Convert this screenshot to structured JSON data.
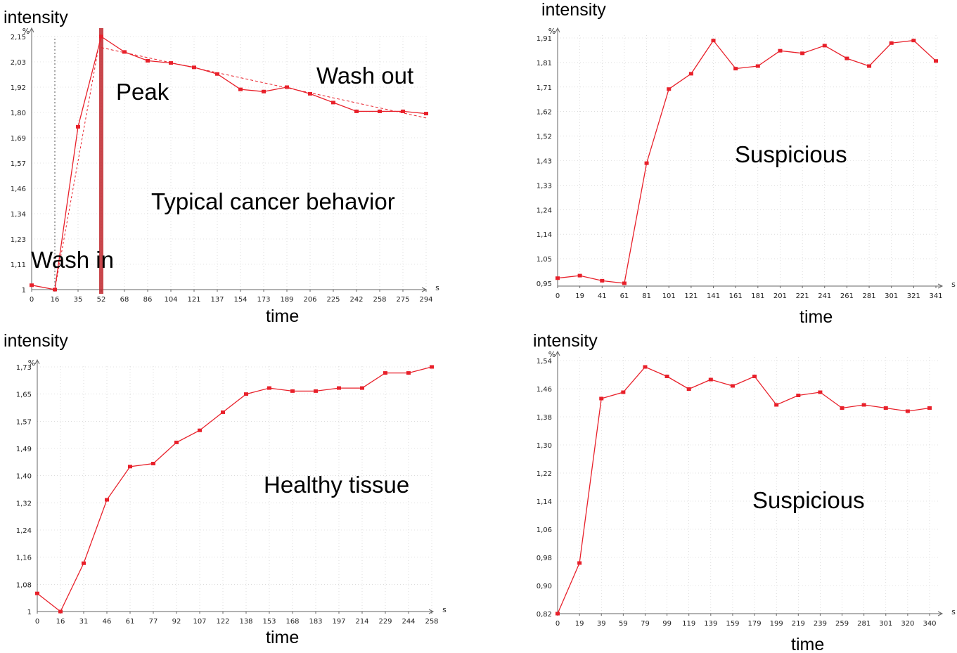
{
  "chart_data": [
    {
      "type": "line",
      "ylabel": "intensity",
      "xlabel": "time",
      "y_unit": "%",
      "x_unit": "s",
      "annotations": [
        "Wash out",
        "Peak",
        "Typical cancer behavior",
        "Wash in"
      ],
      "x_ticks": [
        "0",
        "16",
        "35",
        "52",
        "68",
        "86",
        "104",
        "121",
        "137",
        "154",
        "173",
        "189",
        "206",
        "225",
        "242",
        "258",
        "275",
        "294"
      ],
      "y_ticks": [
        "1",
        "1,11",
        "1,23",
        "1,34",
        "1,46",
        "1,57",
        "1,69",
        "1,80",
        "1,92",
        "2,03",
        "2,15"
      ],
      "ylim": [
        1,
        2.15
      ],
      "peak_time": 52,
      "series": [
        {
          "color": "#e8202a",
          "x": [
            0,
            16,
            35,
            52,
            68,
            86,
            104,
            121,
            137,
            154,
            173,
            189,
            206,
            225,
            242,
            258,
            275,
            294
          ],
          "values": [
            1.02,
            1.0,
            1.74,
            2.15,
            2.08,
            2.04,
            2.03,
            2.01,
            1.98,
            1.91,
            1.9,
            1.92,
            1.89,
            1.85,
            1.81,
            1.81,
            1.81,
            1.8
          ]
        }
      ]
    },
    {
      "type": "line",
      "ylabel": "intensity",
      "xlabel": "time",
      "y_unit": "%",
      "x_unit": "s",
      "annotations": [
        "Suspicious"
      ],
      "x_ticks": [
        "0",
        "19",
        "41",
        "61",
        "81",
        "101",
        "121",
        "141",
        "161",
        "181",
        "201",
        "221",
        "241",
        "261",
        "281",
        "301",
        "321",
        "341"
      ],
      "y_ticks": [
        "0,95",
        "1,05",
        "1,14",
        "1,24",
        "1,33",
        "1,43",
        "1,52",
        "1,62",
        "1,71",
        "1,81",
        "1,91"
      ],
      "ylim": [
        0.95,
        1.91
      ],
      "series": [
        {
          "color": "#e8202a",
          "x": [
            0,
            19,
            41,
            61,
            81,
            101,
            121,
            141,
            161,
            181,
            201,
            221,
            241,
            261,
            281,
            301,
            321,
            341
          ],
          "values": [
            0.97,
            0.98,
            0.96,
            0.95,
            1.42,
            1.71,
            1.77,
            1.9,
            1.79,
            1.8,
            1.86,
            1.85,
            1.88,
            1.83,
            1.8,
            1.89,
            1.9,
            1.82
          ]
        }
      ]
    },
    {
      "type": "line",
      "ylabel": "intensity",
      "xlabel": "time",
      "y_unit": "%",
      "x_unit": "s",
      "annotations": [
        "Healthy tissue"
      ],
      "x_ticks": [
        "0",
        "16",
        "31",
        "46",
        "61",
        "77",
        "92",
        "107",
        "122",
        "138",
        "153",
        "168",
        "183",
        "197",
        "214",
        "229",
        "244",
        "258"
      ],
      "y_ticks": [
        "1",
        "1,08",
        "1,16",
        "1,24",
        "1,32",
        "1,40",
        "1,49",
        "1,57",
        "1,65",
        "1,73"
      ],
      "ylim": [
        1,
        1.81
      ],
      "series": [
        {
          "color": "#e8202a",
          "x": [
            0,
            16,
            31,
            46,
            61,
            77,
            92,
            107,
            122,
            138,
            153,
            168,
            183,
            197,
            214,
            229,
            244,
            258
          ],
          "values": [
            1.06,
            1.0,
            1.16,
            1.37,
            1.48,
            1.49,
            1.56,
            1.6,
            1.66,
            1.72,
            1.74,
            1.73,
            1.73,
            1.74,
            1.74,
            1.79,
            1.79,
            1.81
          ]
        }
      ]
    },
    {
      "type": "line",
      "ylabel": "intensity",
      "xlabel": "time",
      "y_unit": "%",
      "x_unit": "s",
      "annotations": [
        "Suspicious"
      ],
      "x_ticks": [
        "0",
        "19",
        "39",
        "59",
        "79",
        "99",
        "119",
        "139",
        "159",
        "179",
        "199",
        "219",
        "239",
        "259",
        "281",
        "301",
        "320",
        "340"
      ],
      "y_ticks": [
        "0,82",
        "0,90",
        "0,98",
        "1,06",
        "1,14",
        "1,22",
        "1,30",
        "1,38",
        "1,46",
        "1,54"
      ],
      "ylim": [
        0.82,
        1.62
      ],
      "series": [
        {
          "color": "#e8202a",
          "x": [
            0,
            19,
            39,
            59,
            79,
            99,
            119,
            139,
            159,
            179,
            199,
            219,
            239,
            259,
            281,
            301,
            320,
            340
          ],
          "values": [
            0.82,
            0.98,
            1.5,
            1.52,
            1.6,
            1.57,
            1.53,
            1.56,
            1.54,
            1.57,
            1.48,
            1.51,
            1.52,
            1.47,
            1.48,
            1.47,
            1.46,
            1.47
          ]
        }
      ]
    }
  ]
}
